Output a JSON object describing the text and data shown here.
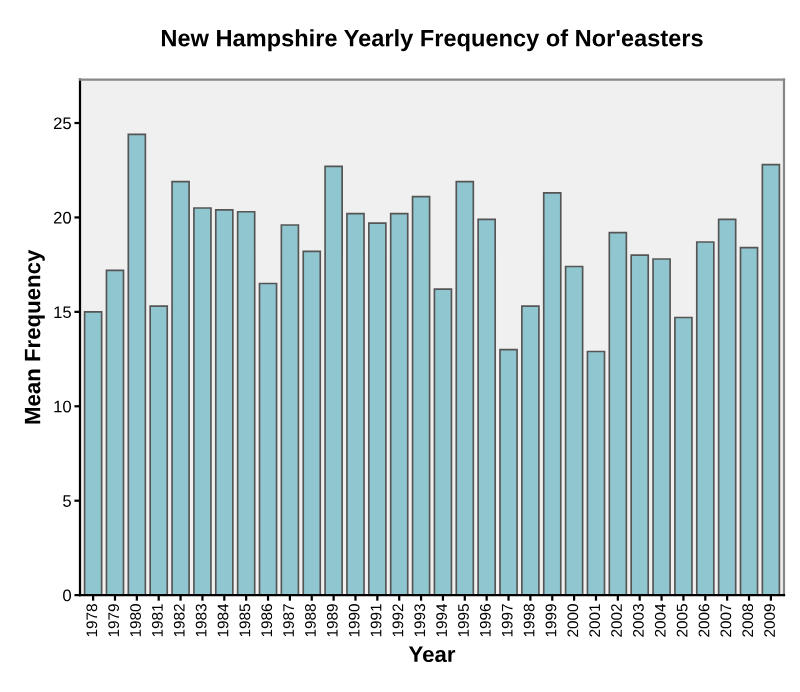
{
  "chart_data": {
    "type": "bar",
    "title": "New Hampshire Yearly Frequency of Nor'easters",
    "xlabel": "Year",
    "ylabel": "Mean Frequency",
    "categories": [
      "1978",
      "1979",
      "1980",
      "1981",
      "1982",
      "1983",
      "1984",
      "1985",
      "1986",
      "1987",
      "1988",
      "1989",
      "1990",
      "1991",
      "1992",
      "1993",
      "1994",
      "1995",
      "1996",
      "1997",
      "1998",
      "1999",
      "2000",
      "2001",
      "2002",
      "2003",
      "2004",
      "2005",
      "2006",
      "2007",
      "2008",
      "2009"
    ],
    "values": [
      15.0,
      17.2,
      24.4,
      15.3,
      21.9,
      20.5,
      20.4,
      20.3,
      16.5,
      19.6,
      18.2,
      22.7,
      20.2,
      19.7,
      20.2,
      21.1,
      16.2,
      21.9,
      19.9,
      13.0,
      15.3,
      21.3,
      17.4,
      12.9,
      19.2,
      18.0,
      17.8,
      14.7,
      18.7,
      19.9,
      18.4,
      22.8
    ],
    "color": "#8fc6cf",
    "ylim": [
      0,
      27.3
    ],
    "yticks": [
      0,
      5,
      10,
      15,
      20,
      25
    ],
    "grid": false,
    "legend": false
  }
}
